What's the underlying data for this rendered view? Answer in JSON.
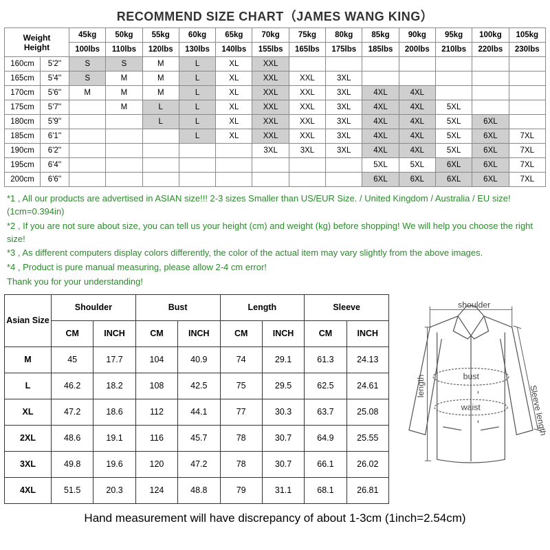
{
  "title": "RECOMMEND SIZE CHART（JAMES WANG KING）",
  "chart": {
    "header_label_1": "Weight",
    "header_label_2": "Height",
    "weights_kg": [
      "45kg",
      "50kg",
      "55kg",
      "60kg",
      "65kg",
      "70kg",
      "75kg",
      "80kg",
      "85kg",
      "90kg",
      "95kg",
      "100kg",
      "105kg"
    ],
    "weights_lbs": [
      "100lbs",
      "110lbs",
      "120lbs",
      "130lbs",
      "140lbs",
      "155lbs",
      "165lbs",
      "175lbs",
      "185lbs",
      "200lbs",
      "210lbs",
      "220lbs",
      "230lbs"
    ],
    "rows": [
      {
        "h_cm": "160cm",
        "h_ft": "5'2''",
        "cells": [
          "S",
          "S",
          "M",
          "L",
          "XL",
          "XXL",
          "",
          "",
          "",
          "",
          "",
          "",
          ""
        ],
        "shade": [
          1,
          1,
          0,
          1,
          0,
          1,
          0,
          0,
          0,
          0,
          0,
          0,
          0
        ]
      },
      {
        "h_cm": "165cm",
        "h_ft": "5'4''",
        "cells": [
          "S",
          "M",
          "M",
          "L",
          "XL",
          "XXL",
          "XXL",
          "3XL",
          "",
          "",
          "",
          "",
          ""
        ],
        "shade": [
          1,
          0,
          0,
          1,
          0,
          1,
          0,
          0,
          0,
          0,
          0,
          0,
          0
        ]
      },
      {
        "h_cm": "170cm",
        "h_ft": "5'6''",
        "cells": [
          "M",
          "M",
          "M",
          "L",
          "XL",
          "XXL",
          "XXL",
          "3XL",
          "4XL",
          "4XL",
          "",
          "",
          ""
        ],
        "shade": [
          0,
          0,
          0,
          1,
          0,
          1,
          0,
          0,
          1,
          1,
          0,
          0,
          0
        ]
      },
      {
        "h_cm": "175cm",
        "h_ft": "5'7''",
        "cells": [
          "",
          "M",
          "L",
          "L",
          "XL",
          "XXL",
          "XXL",
          "3XL",
          "4XL",
          "4XL",
          "5XL",
          "",
          ""
        ],
        "shade": [
          0,
          0,
          1,
          1,
          0,
          1,
          0,
          0,
          1,
          1,
          0,
          0,
          0
        ]
      },
      {
        "h_cm": "180cm",
        "h_ft": "5'9''",
        "cells": [
          "",
          "",
          "L",
          "L",
          "XL",
          "XXL",
          "XXL",
          "3XL",
          "4XL",
          "4XL",
          "5XL",
          "6XL",
          ""
        ],
        "shade": [
          0,
          0,
          1,
          1,
          0,
          1,
          0,
          0,
          1,
          1,
          0,
          1,
          0
        ]
      },
      {
        "h_cm": "185cm",
        "h_ft": "6'1''",
        "cells": [
          "",
          "",
          "",
          "L",
          "XL",
          "XXL",
          "XXL",
          "3XL",
          "4XL",
          "4XL",
          "5XL",
          "6XL",
          "7XL"
        ],
        "shade": [
          0,
          0,
          0,
          1,
          0,
          1,
          0,
          0,
          1,
          1,
          0,
          1,
          0
        ]
      },
      {
        "h_cm": "190cm",
        "h_ft": "6'2''",
        "cells": [
          "",
          "",
          "",
          "",
          "",
          "3XL",
          "3XL",
          "3XL",
          "4XL",
          "4XL",
          "5XL",
          "6XL",
          "7XL"
        ],
        "shade": [
          0,
          0,
          0,
          0,
          0,
          0,
          0,
          0,
          1,
          1,
          0,
          1,
          0
        ]
      },
      {
        "h_cm": "195cm",
        "h_ft": "6'4''",
        "cells": [
          "",
          "",
          "",
          "",
          "",
          "",
          "",
          "",
          "5XL",
          "5XL",
          "6XL",
          "6XL",
          "7XL"
        ],
        "shade": [
          0,
          0,
          0,
          0,
          0,
          0,
          0,
          0,
          0,
          0,
          1,
          1,
          0
        ]
      },
      {
        "h_cm": "200cm",
        "h_ft": "6'6''",
        "cells": [
          "",
          "",
          "",
          "",
          "",
          "",
          "",
          "",
          "6XL",
          "6XL",
          "6XL",
          "6XL",
          "7XL"
        ],
        "shade": [
          0,
          0,
          0,
          0,
          0,
          0,
          0,
          0,
          1,
          1,
          1,
          1,
          0
        ]
      }
    ]
  },
  "notes": [
    "*1 , All our products are advertised in ASIAN size!!! 2-3 sizes Smaller than US/EUR Size. / United Kingdom / Australia / EU size! (1cm=0.394in)",
    "*2 , If you are not sure about size, you can tell us your height (cm) and weight (kg) before shopping! We will help you choose the right size!",
    "*3 , As different computers display colors differently, the color of the actual item may vary slightly from the above images.",
    "*4 , Product is pure manual measuring, please allow 2-4 cm error!",
    "Thank you for your understanding!"
  ],
  "measure": {
    "group_headers": [
      "Asian Size",
      "Shoulder",
      "Bust",
      "Length",
      "Sleeve"
    ],
    "unit_headers": [
      "CM",
      "INCH",
      "CM",
      "INCH",
      "CM",
      "INCH",
      "CM",
      "INCH"
    ],
    "rows": [
      [
        "M",
        "45",
        "17.7",
        "104",
        "40.9",
        "74",
        "29.1",
        "61.3",
        "24.13"
      ],
      [
        "L",
        "46.2",
        "18.2",
        "108",
        "42.5",
        "75",
        "29.5",
        "62.5",
        "24.61"
      ],
      [
        "XL",
        "47.2",
        "18.6",
        "112",
        "44.1",
        "77",
        "30.3",
        "63.7",
        "25.08"
      ],
      [
        "2XL",
        "48.6",
        "19.1",
        "116",
        "45.7",
        "78",
        "30.7",
        "64.9",
        "25.55"
      ],
      [
        "3XL",
        "49.8",
        "19.6",
        "120",
        "47.2",
        "78",
        "30.7",
        "66.1",
        "26.02"
      ],
      [
        "4XL",
        "51.5",
        "20.3",
        "124",
        "48.8",
        "79",
        "31.1",
        "68.1",
        "26.81"
      ]
    ]
  },
  "diagram_labels": {
    "shoulder": "shoulder",
    "bust": "bust",
    "waist": "waist",
    "length": "length",
    "sleeve": "Sleeve length"
  },
  "footer": "Hand measurement will have discrepancy of about 1-3cm (1inch=2.54cm)"
}
